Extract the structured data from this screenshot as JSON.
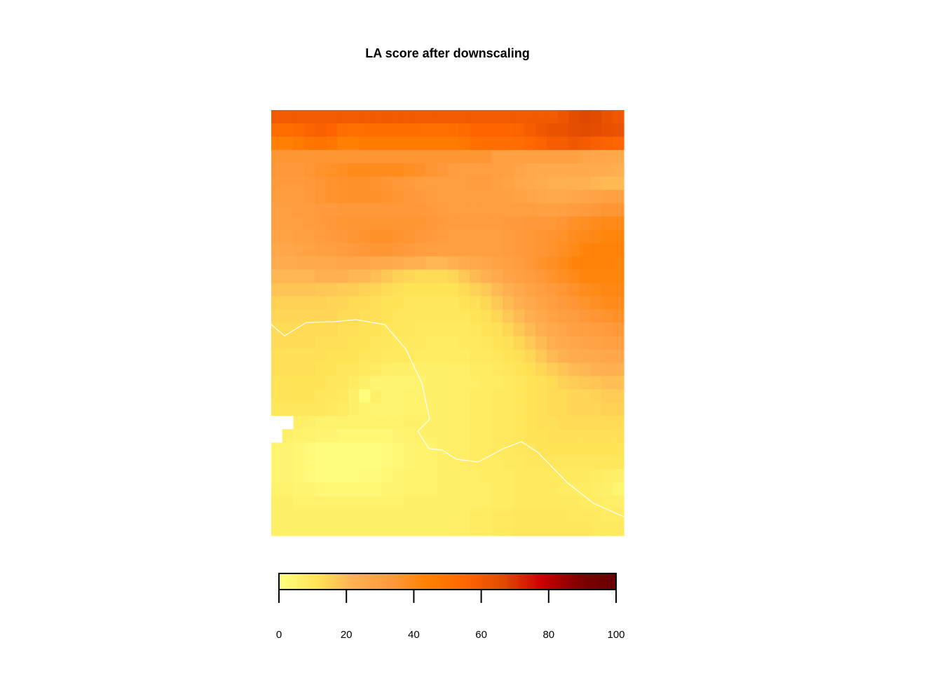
{
  "chart_data": {
    "type": "heatmap",
    "title": "LA score after downscaling",
    "xlabel": "",
    "ylabel": "",
    "grid": false,
    "legend_position": "bottom",
    "colorbar": {
      "min": 0,
      "max": 100,
      "ticks": [
        0,
        20,
        40,
        60,
        80,
        100
      ],
      "tick_labels": [
        "0",
        "20",
        "40",
        "60",
        "80",
        "100"
      ],
      "palette": [
        "#FFFF80",
        "#FFE457",
        "#FFB052",
        "#FF9A3C",
        "#FF7F00",
        "#FF6600",
        "#E04A00",
        "#CC0000",
        "#800000",
        "#660000"
      ]
    },
    "boundary_line_color": "#ffffff",
    "nodata_color": "#ffffff",
    "rows": 32,
    "cols": 32,
    "values": [
      [
        60,
        60,
        60,
        60,
        60,
        60,
        60,
        60,
        60,
        60,
        60,
        60,
        60,
        60,
        60,
        60,
        60,
        60,
        60,
        60,
        60,
        60,
        60,
        60,
        60,
        60,
        62,
        65,
        67,
        66,
        63,
        61
      ],
      [
        53,
        53,
        54,
        57,
        58,
        56,
        52,
        51,
        52,
        52,
        52,
        52,
        52,
        52,
        51,
        51,
        52,
        54,
        56,
        56,
        56,
        56,
        57,
        59,
        61,
        63,
        63,
        65,
        66,
        65,
        64,
        63
      ],
      [
        44,
        44,
        46,
        49,
        50,
        48,
        44,
        44,
        46,
        46,
        46,
        46,
        46,
        46,
        46,
        46,
        46,
        48,
        51,
        52,
        52,
        52,
        53,
        55,
        57,
        59,
        59,
        61,
        60,
        58,
        57,
        56
      ],
      [
        35,
        35,
        35,
        35,
        35,
        35,
        35,
        35,
        35,
        35,
        35,
        35,
        35,
        35,
        35,
        35,
        35,
        35,
        35,
        35,
        31,
        31,
        31,
        31,
        31,
        31,
        30,
        30,
        28,
        27,
        27,
        26
      ],
      [
        34,
        34,
        34,
        35,
        36,
        37,
        38,
        39,
        39,
        39,
        39,
        39,
        38,
        37,
        35,
        34,
        32,
        31,
        31,
        31,
        31,
        30,
        28,
        26,
        25,
        25,
        25,
        25,
        25,
        24,
        24,
        23
      ],
      [
        33,
        33,
        33,
        34,
        35,
        36,
        37,
        37,
        37,
        36,
        35,
        34,
        33,
        32,
        31,
        31,
        31,
        31,
        32,
        32,
        30,
        29,
        27,
        25,
        24,
        23,
        23,
        22,
        22,
        21,
        20,
        20
      ],
      [
        32,
        32,
        32,
        33,
        35,
        36,
        37,
        37,
        37,
        37,
        36,
        35,
        34,
        33,
        32,
        31,
        31,
        31,
        31,
        31,
        31,
        30,
        29,
        28,
        27,
        26,
        26,
        27,
        28,
        29,
        30,
        30
      ],
      [
        31,
        31,
        32,
        32,
        33,
        33,
        34,
        34,
        34,
        34,
        34,
        34,
        34,
        34,
        33,
        32,
        31,
        31,
        31,
        31,
        31,
        31,
        31,
        31,
        30,
        30,
        31,
        32,
        33,
        34,
        35,
        35
      ],
      [
        31,
        31,
        31,
        32,
        33,
        34,
        35,
        35,
        35,
        35,
        35,
        35,
        35,
        35,
        34,
        33,
        32,
        32,
        32,
        32,
        32,
        33,
        33,
        34,
        34,
        34,
        35,
        37,
        38,
        39,
        40,
        40
      ],
      [
        29,
        29,
        30,
        31,
        32,
        33,
        34,
        35,
        36,
        37,
        37,
        36,
        35,
        34,
        33,
        32,
        31,
        31,
        31,
        31,
        31,
        32,
        33,
        34,
        35,
        36,
        37,
        39,
        40,
        41,
        42,
        42
      ],
      [
        27,
        27,
        28,
        29,
        30,
        31,
        32,
        33,
        34,
        35,
        35,
        34,
        33,
        32,
        31,
        30,
        30,
        31,
        31,
        31,
        31,
        32,
        33,
        34,
        35,
        36,
        38,
        40,
        42,
        43,
        43,
        43
      ],
      [
        24,
        24,
        25,
        25,
        26,
        26,
        27,
        27,
        27,
        26,
        25,
        24,
        23,
        22,
        21,
        21,
        22,
        24,
        26,
        27,
        29,
        30,
        32,
        34,
        36,
        38,
        40,
        42,
        43,
        43,
        43,
        42
      ],
      [
        21,
        21,
        21,
        21,
        22,
        22,
        22,
        21,
        21,
        19,
        17,
        15,
        14,
        13,
        13,
        13,
        14,
        17,
        20,
        22,
        25,
        28,
        30,
        32,
        34,
        36,
        38,
        40,
        42,
        42,
        42,
        42
      ],
      [
        18,
        18,
        18,
        18,
        17,
        17,
        16,
        16,
        15,
        14,
        13,
        12,
        11,
        11,
        11,
        11,
        11,
        13,
        15,
        17,
        20,
        23,
        26,
        29,
        31,
        33,
        35,
        37,
        39,
        40,
        41,
        41
      ],
      [
        15,
        15,
        15,
        15,
        15,
        14,
        14,
        13,
        13,
        12,
        11,
        11,
        10,
        10,
        10,
        10,
        10,
        11,
        12,
        14,
        17,
        20,
        23,
        26,
        29,
        31,
        33,
        35,
        36,
        38,
        39,
        39
      ],
      [
        14,
        14,
        14,
        14,
        14,
        14,
        13,
        13,
        12,
        12,
        11,
        10,
        10,
        10,
        10,
        10,
        10,
        10,
        11,
        12,
        14,
        17,
        20,
        23,
        26,
        29,
        31,
        32,
        34,
        35,
        36,
        37
      ],
      [
        13,
        13,
        13,
        13,
        13,
        13,
        12,
        12,
        11,
        11,
        10,
        10,
        10,
        9,
        9,
        9,
        9,
        9,
        10,
        11,
        12,
        14,
        17,
        20,
        23,
        26,
        28,
        30,
        31,
        32,
        33,
        34
      ],
      [
        13,
        13,
        13,
        13,
        12,
        12,
        12,
        11,
        11,
        10,
        10,
        9,
        9,
        9,
        8,
        8,
        8,
        9,
        9,
        10,
        11,
        12,
        14,
        17,
        20,
        23,
        25,
        27,
        28,
        29,
        30,
        31
      ],
      [
        12,
        12,
        12,
        12,
        12,
        11,
        11,
        11,
        10,
        10,
        9,
        9,
        9,
        8,
        8,
        8,
        8,
        8,
        9,
        9,
        10,
        11,
        12,
        14,
        17,
        20,
        22,
        24,
        25,
        26,
        27,
        27
      ],
      [
        12,
        12,
        12,
        12,
        11,
        11,
        10,
        10,
        9,
        8,
        7,
        6,
        6,
        6,
        6,
        6,
        7,
        7,
        8,
        8,
        9,
        10,
        11,
        12,
        14,
        16,
        18,
        20,
        21,
        22,
        23,
        23
      ],
      [
        11,
        11,
        11,
        11,
        11,
        10,
        10,
        8,
        6,
        4,
        4,
        4,
        4,
        5,
        6,
        6,
        7,
        7,
        7,
        8,
        8,
        9,
        10,
        11,
        12,
        13,
        15,
        16,
        17,
        18,
        19,
        19
      ],
      [
        11,
        11,
        11,
        11,
        10,
        10,
        9,
        6,
        1,
        6,
        4,
        4,
        5,
        5,
        6,
        6,
        7,
        7,
        8,
        8,
        9,
        9,
        10,
        11,
        12,
        13,
        13,
        14,
        14,
        15,
        16,
        16
      ],
      [
        10,
        10,
        10,
        10,
        10,
        9,
        8,
        6,
        5,
        4,
        4,
        4,
        5,
        5,
        6,
        6,
        7,
        7,
        8,
        8,
        9,
        9,
        10,
        11,
        12,
        13,
        13,
        14,
        14,
        14,
        15,
        15
      ],
      [
        -1,
        -1,
        7,
        6,
        5,
        5,
        5,
        5,
        5,
        5,
        5,
        5,
        6,
        6,
        6,
        6,
        7,
        7,
        8,
        8,
        9,
        9,
        10,
        11,
        12,
        12,
        13,
        13,
        13,
        13,
        13,
        13
      ],
      [
        -1,
        6,
        5,
        5,
        4,
        4,
        3,
        3,
        3,
        3,
        3,
        4,
        5,
        6,
        6,
        6,
        7,
        7,
        8,
        8,
        9,
        9,
        10,
        11,
        11,
        12,
        12,
        12,
        12,
        12,
        12,
        12
      ],
      [
        4,
        4,
        3,
        2,
        1,
        1,
        1,
        1,
        1,
        1,
        2,
        3,
        4,
        5,
        5,
        6,
        7,
        7,
        8,
        8,
        9,
        9,
        10,
        10,
        11,
        11,
        11,
        11,
        11,
        11,
        11,
        11
      ],
      [
        4,
        4,
        3,
        2,
        1,
        1,
        1,
        1,
        1,
        1,
        2,
        3,
        4,
        5,
        5,
        6,
        7,
        7,
        8,
        8,
        8,
        9,
        9,
        10,
        10,
        10,
        10,
        10,
        10,
        10,
        10,
        10
      ],
      [
        4,
        4,
        3,
        2,
        1,
        1,
        1,
        1,
        2,
        2,
        3,
        4,
        5,
        5,
        5,
        6,
        6,
        7,
        7,
        8,
        8,
        8,
        9,
        9,
        9,
        9,
        9,
        9,
        9,
        8,
        7,
        6
      ],
      [
        5,
        5,
        4,
        4,
        3,
        3,
        3,
        3,
        3,
        3,
        4,
        4,
        5,
        5,
        5,
        6,
        6,
        7,
        7,
        7,
        8,
        8,
        9,
        9,
        9,
        9,
        8,
        8,
        8,
        7,
        6,
        4
      ],
      [
        6,
        6,
        5,
        5,
        5,
        5,
        5,
        5,
        5,
        5,
        5,
        5,
        6,
        6,
        6,
        6,
        6,
        7,
        7,
        7,
        8,
        8,
        9,
        9,
        9,
        9,
        9,
        9,
        8,
        8,
        7,
        7
      ],
      [
        6,
        6,
        6,
        6,
        6,
        6,
        6,
        6,
        6,
        6,
        6,
        6,
        6,
        6,
        6,
        6,
        7,
        7,
        8,
        8,
        9,
        9,
        10,
        10,
        10,
        10,
        10,
        9,
        9,
        9,
        8,
        8
      ],
      [
        6,
        6,
        6,
        6,
        6,
        6,
        6,
        6,
        6,
        6,
        6,
        6,
        6,
        6,
        6,
        6,
        7,
        7,
        8,
        8,
        9,
        9,
        10,
        10,
        10,
        10,
        10,
        10,
        10,
        9,
        9,
        9
      ]
    ]
  }
}
